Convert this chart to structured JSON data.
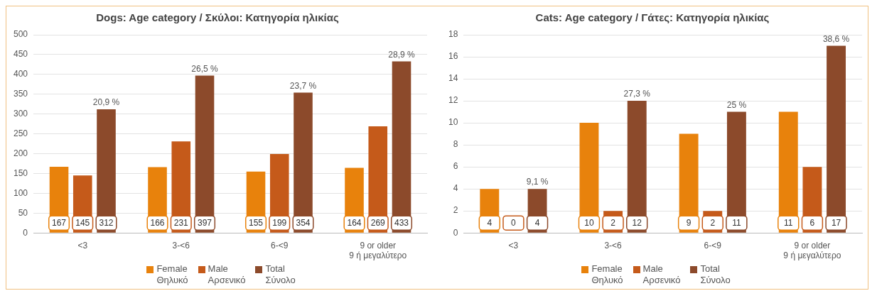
{
  "chart_data": [
    {
      "type": "bar",
      "title": "Dogs: Age category / Σκύλοι: Κατηγορία ηλικίας",
      "categories": [
        "<3",
        "3-<6",
        "6-<9",
        "9 or older\n9 ή μεγαλύτερο"
      ],
      "series": [
        {
          "name": "Female\nΘηλυκό",
          "color": "#e8820c",
          "values": [
            167,
            166,
            155,
            164
          ]
        },
        {
          "name": "Male\nΑρσενικό",
          "color": "#c55a1a",
          "values": [
            145,
            231,
            199,
            269
          ]
        },
        {
          "name": "Total\nΣύνολο",
          "color": "#8c4a2b",
          "values": [
            312,
            397,
            354,
            433
          ]
        }
      ],
      "ylim": [
        0,
        500
      ],
      "yticks": [
        0,
        50,
        100,
        150,
        200,
        250,
        300,
        350,
        400,
        450,
        500
      ],
      "grid": "y",
      "legend": "bottom",
      "data_labels": true,
      "annotations": [
        "20,9 %",
        "26,5 %",
        "23,7 %",
        "28,9 %"
      ]
    },
    {
      "type": "bar",
      "title": "Cats: Age category / Γάτες: Κατηγορία ηλικίας",
      "categories": [
        "<3",
        "3-<6",
        "6-<9",
        "9 or older\n9 ή μεγαλύτερο"
      ],
      "series": [
        {
          "name": "Female\nΘηλυκό",
          "color": "#e8820c",
          "values": [
            4,
            10,
            9,
            11
          ]
        },
        {
          "name": "Male\nΑρσενικό",
          "color": "#c55a1a",
          "values": [
            0,
            2,
            2,
            6
          ]
        },
        {
          "name": "Total\nΣύνολο",
          "color": "#8c4a2b",
          "values": [
            4,
            12,
            11,
            17
          ]
        }
      ],
      "ylim": [
        0,
        18
      ],
      "yticks": [
        0,
        2,
        4,
        6,
        8,
        10,
        12,
        14,
        16,
        18
      ],
      "grid": "y",
      "legend": "bottom",
      "data_labels": true,
      "annotations": [
        "9,1 %",
        "27,3 %",
        "25 %",
        "38,6 %"
      ]
    }
  ]
}
